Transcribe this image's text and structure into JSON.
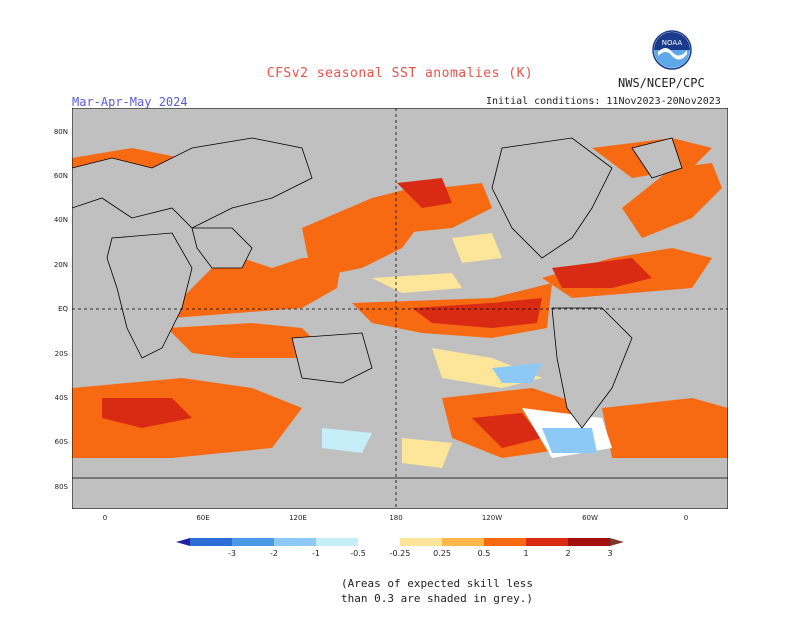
{
  "header": {
    "title": "CFSv2 seasonal SST anomalies (K)",
    "season": "Mar-Apr-May 2024",
    "agency": "NWS/NCEP/CPC",
    "initial_conditions": "Initial conditions: 11Nov2023-20Nov2023",
    "logo_text": "NOAA"
  },
  "map": {
    "lat_labels": [
      "80N",
      "60N",
      "40N",
      "20N",
      "EQ",
      "20S",
      "40S",
      "60S",
      "80S"
    ],
    "lon_labels": [
      "0",
      "60E",
      "120E",
      "180",
      "120W",
      "60W",
      "0"
    ],
    "colors": {
      "masked": "#c0c0c0",
      "land_grid": "#c8c8c8",
      "border": "#000000"
    }
  },
  "colorbar": {
    "labels": [
      "-3",
      "-2",
      "-1",
      "-0.5",
      "-0.25",
      "0.25",
      "0.5",
      "1",
      "2",
      "3"
    ],
    "colors": [
      "#2020a0",
      "#2b6fd6",
      "#4a98e8",
      "#8ccaf5",
      "#c6eef8",
      "#ffffff",
      "#fde59a",
      "#fdb74b",
      "#f76a12",
      "#d92a14",
      "#a30f0f",
      "#7a3a2a"
    ]
  },
  "footnote": {
    "line1": "(Areas of expected skill less",
    "line2": "than 0.3 are shaded in grey.)"
  }
}
